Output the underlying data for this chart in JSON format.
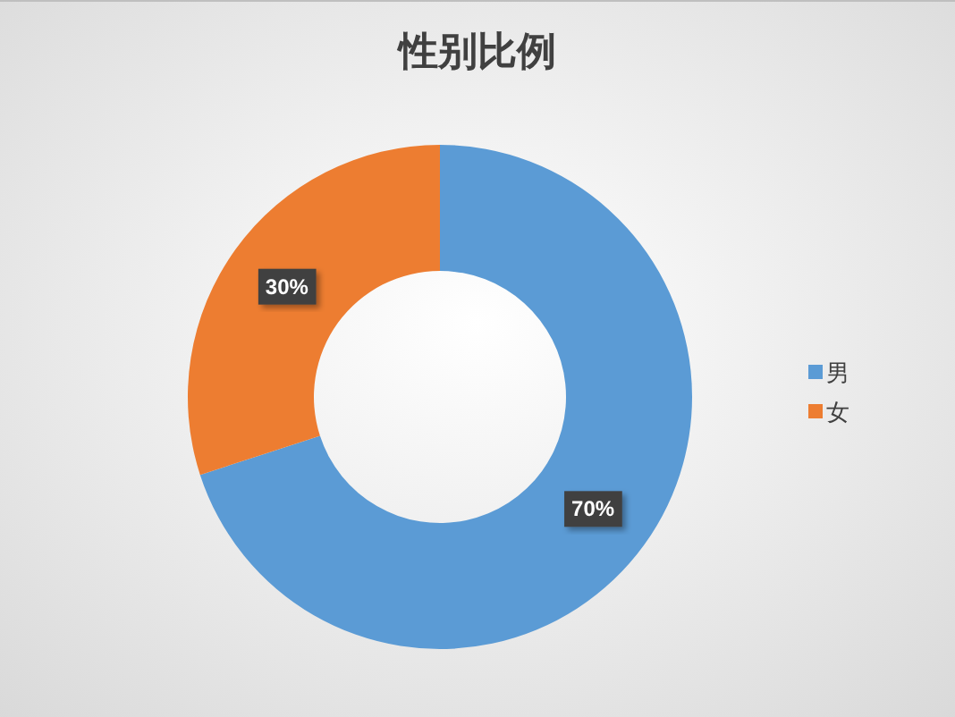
{
  "chart_data": {
    "type": "donut",
    "title": "性别比例",
    "categories": [
      "男",
      "女"
    ],
    "values": [
      70,
      30
    ],
    "colors": [
      "#5b9bd5",
      "#ed7d31"
    ],
    "value_labels": [
      "70%",
      "30%"
    ],
    "legend": "right"
  }
}
